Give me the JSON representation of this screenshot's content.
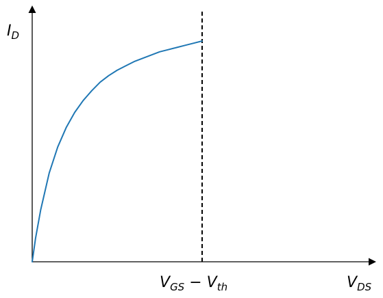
{
  "chart_data": {
    "type": "line",
    "title": "",
    "grid": false,
    "legend": "none",
    "xlabel": {
      "symbol": "V",
      "subscript": "DS"
    },
    "ylabel": {
      "symbol": "I",
      "subscript": "D"
    },
    "xlim": [
      0,
      2
    ],
    "ylim": [
      0,
      1.2
    ],
    "x_tick_label": {
      "value": 1.0,
      "parts": [
        "V",
        "GS",
        " − ",
        "V",
        "th"
      ]
    },
    "vline": {
      "x": 1.0,
      "style": "dashed",
      "color": "#000000"
    },
    "series": [
      {
        "color": "#1f77b4",
        "x": [
          0,
          0.02,
          0.05,
          0.1,
          0.15,
          0.2,
          0.25,
          0.3,
          0.35,
          0.4,
          0.45,
          0.5,
          0.55,
          0.6,
          0.65,
          0.7,
          0.75,
          0.8,
          0.85,
          0.9,
          0.95,
          1.0
        ],
        "y": [
          0,
          0.11,
          0.24,
          0.41,
          0.53,
          0.62,
          0.69,
          0.745,
          0.79,
          0.83,
          0.86,
          0.885,
          0.905,
          0.925,
          0.94,
          0.955,
          0.97,
          0.98,
          0.99,
          1.0,
          1.01,
          1.02
        ]
      }
    ]
  }
}
